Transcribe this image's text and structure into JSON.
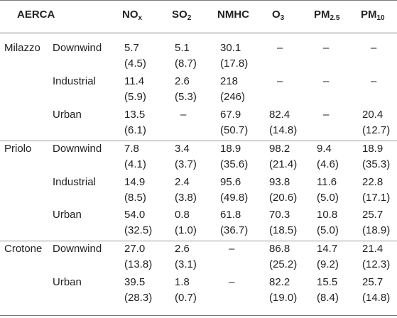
{
  "header": {
    "aerca": "AERCA",
    "nox": "NO",
    "nox_sub": "x",
    "so2": "SO",
    "so2_sub": "2",
    "nmhc": "NMHC",
    "o3": "O",
    "o3_sub": "3",
    "pm25": "PM",
    "pm25_sub": "2.5",
    "pm10": "PM",
    "pm10_sub": "10"
  },
  "rows": [
    {
      "site": "Milazzo",
      "zone": "Downwind",
      "nox": [
        "5.7",
        "(4.5)"
      ],
      "so2": [
        "5.1",
        "(8.7)"
      ],
      "nmhc": [
        "30.1",
        "(17.8)"
      ],
      "o3": [
        "–",
        ""
      ],
      "pm25": [
        "–",
        ""
      ],
      "pm10": [
        "–",
        ""
      ]
    },
    {
      "site": "",
      "zone": "Industrial",
      "nox": [
        "11.4",
        "(5.9)"
      ],
      "so2": [
        "2.6",
        "(5.3)"
      ],
      "nmhc": [
        "218",
        "(246)"
      ],
      "o3": [
        "–",
        ""
      ],
      "pm25": [
        "–",
        ""
      ],
      "pm10": [
        "–",
        ""
      ]
    },
    {
      "site": "",
      "zone": "Urban",
      "nox": [
        "13.5",
        "(6.1)"
      ],
      "so2": [
        "–",
        ""
      ],
      "nmhc": [
        "67.9",
        "(50.7)"
      ],
      "o3": [
        "82.4",
        "(14.8)"
      ],
      "pm25": [
        "–",
        ""
      ],
      "pm10": [
        "20.4",
        "(12.7)"
      ]
    },
    {
      "site": "Priolo",
      "zone": "Downwind",
      "nox": [
        "7.8",
        "(4.1)"
      ],
      "so2": [
        "3.4",
        "(3.7)"
      ],
      "nmhc": [
        "18.9",
        "(35.6)"
      ],
      "o3": [
        "98.2",
        "(21.4)"
      ],
      "pm25": [
        "9.4",
        "(4.6)"
      ],
      "pm10": [
        "18.9",
        "(35.3)"
      ]
    },
    {
      "site": "",
      "zone": "Industrial",
      "nox": [
        "14.9",
        "(8.5)"
      ],
      "so2": [
        "2.4",
        "(3.8)"
      ],
      "nmhc": [
        "95.6",
        "(49.8)"
      ],
      "o3": [
        "93.8",
        "(20.6)"
      ],
      "pm25": [
        "11.6",
        "(5.0)"
      ],
      "pm10": [
        "22.8",
        "(17.1)"
      ]
    },
    {
      "site": "",
      "zone": "Urban",
      "nox": [
        "54.0",
        "(32.5)"
      ],
      "so2": [
        "0.8",
        "(1.0)"
      ],
      "nmhc": [
        "61.8",
        "(36.7)"
      ],
      "o3": [
        "70.3",
        "(18.5)"
      ],
      "pm25": [
        "10.8",
        "(5.0)"
      ],
      "pm10": [
        "25.7",
        "(18.9)"
      ]
    },
    {
      "site": "Crotone",
      "zone": "Downwind",
      "nox": [
        "27.0",
        "(13.8)"
      ],
      "so2": [
        "2.6",
        "(3.1)"
      ],
      "nmhc": [
        "–",
        ""
      ],
      "o3": [
        "86.8",
        "(25.2)"
      ],
      "pm25": [
        "14.7",
        "(9.2)"
      ],
      "pm10": [
        "21.4",
        "(12.3)"
      ]
    },
    {
      "site": "",
      "zone": "Urban",
      "nox": [
        "39.5",
        "(28.3)"
      ],
      "so2": [
        "1.8",
        "(0.7)"
      ],
      "nmhc": [
        "–",
        ""
      ],
      "o3": [
        "82.2",
        "(19.0)"
      ],
      "pm25": [
        "15.5",
        "(8.4)"
      ],
      "pm10": [
        "25.7",
        "(14.8)"
      ]
    }
  ]
}
